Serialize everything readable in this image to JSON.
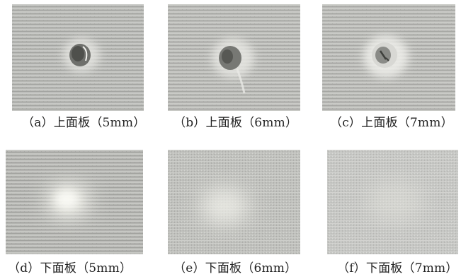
{
  "panels": [
    {
      "id": "a",
      "caption": "（a）上面板（5mm）",
      "content": "上面板 5mm impact damage photo"
    },
    {
      "id": "b",
      "caption": "（b）上面板（6mm）",
      "content": "上面板 6mm impact damage photo"
    },
    {
      "id": "c",
      "caption": "（c）上面板（7mm）",
      "content": "上面板 7mm impact damage photo"
    },
    {
      "id": "d",
      "caption": "（d）下面板（5mm）",
      "content": "下面板 5mm photo"
    },
    {
      "id": "e",
      "caption": "（e）下面板（6mm）",
      "content": "下面板 6mm photo"
    },
    {
      "id": "f",
      "caption": "（f）下面板（7mm）",
      "content": "下面板 7mm photo"
    }
  ],
  "colors": {
    "fabric_light": "#c9c9c5",
    "fabric_mid": "#a9aaa6",
    "fabric_dark": "#8d8e8a",
    "background": "#ffffff",
    "text": "#222222"
  }
}
